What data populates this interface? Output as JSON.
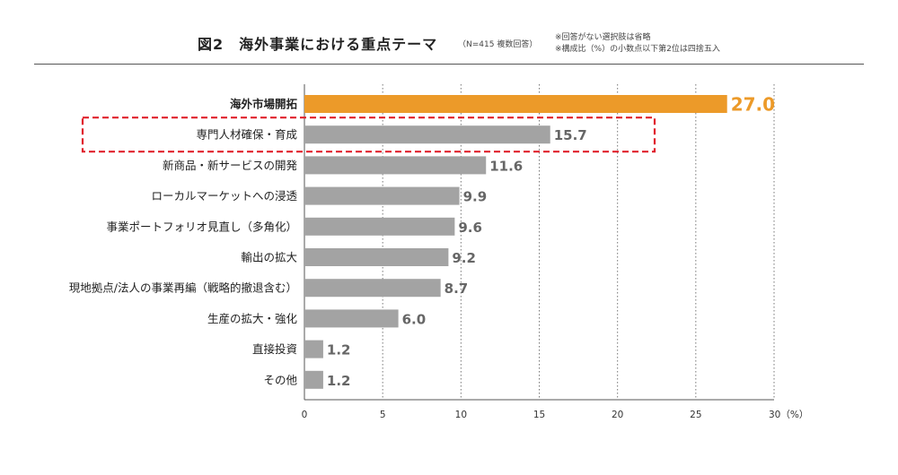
{
  "header": {
    "title": "図2　海外事業における重点テーマ",
    "sample_note": "（N=415  複数回答）",
    "note_1": "※回答がない選択肢は省略",
    "note_2": "※構成比（%）の小数点以下第2位は四捨五入"
  },
  "colors": {
    "highlight_bar": "#ec9a29",
    "bar": "#a3a3a3",
    "callout_border": "#e0202c"
  },
  "chart_data": {
    "type": "bar",
    "orientation": "horizontal",
    "categories": [
      "海外市場開拓",
      "専門人材確保・育成",
      "新商品・新サービスの開発",
      "ローカルマーケットへの浸透",
      "事業ポートフォリオ見直し（多角化）",
      "輸出の拡大",
      "現地拠点/法人の事業再編（戦略的撤退含む）",
      "生産の拡大・強化",
      "直接投資",
      "その他"
    ],
    "values": [
      27.0,
      15.7,
      11.6,
      9.9,
      9.6,
      9.2,
      8.7,
      6.0,
      1.2,
      1.2
    ],
    "value_labels": [
      "27.0",
      "15.7",
      "11.6",
      "9.9",
      "9.6",
      "9.2",
      "8.7",
      "6.0",
      "1.2",
      "1.2"
    ],
    "highlighted_index": 0,
    "callout_index": 1,
    "xlim": [
      0,
      30
    ],
    "x_ticks": [
      "0",
      "5",
      "10",
      "15",
      "20",
      "25",
      "30（%）"
    ],
    "grid": "vertical dotted"
  }
}
